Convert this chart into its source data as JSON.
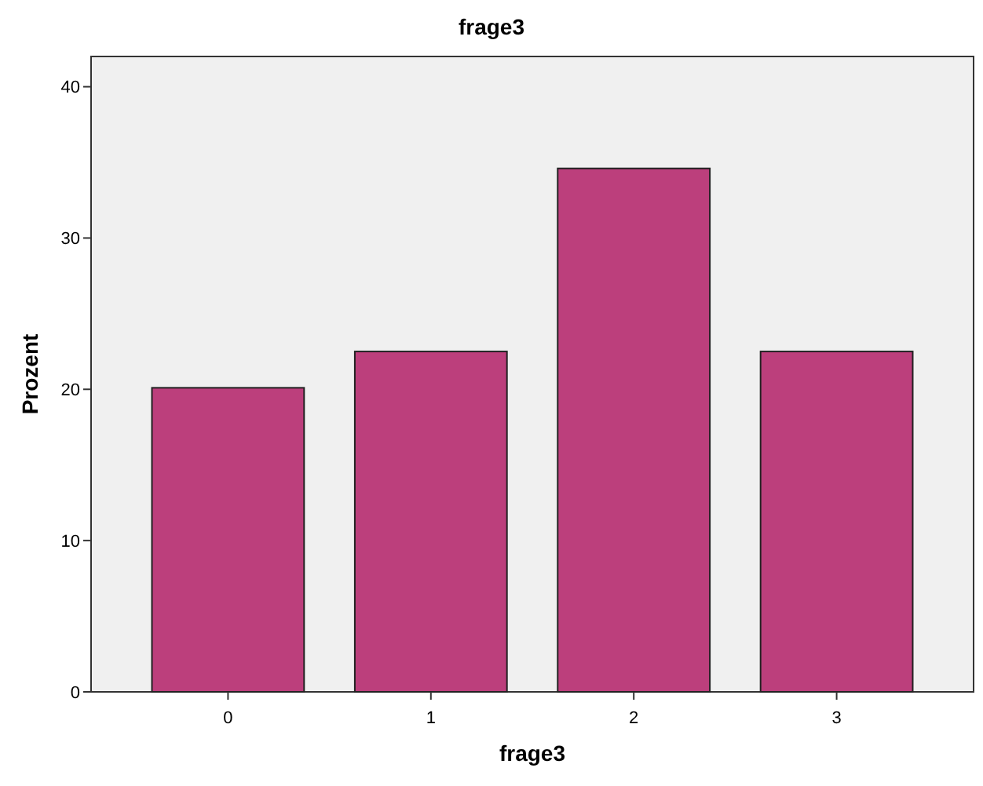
{
  "chart_data": {
    "type": "bar",
    "title": "frage3",
    "xlabel": "frage3",
    "ylabel": "Prozent",
    "categories": [
      "0",
      "1",
      "2",
      "3"
    ],
    "series": [
      {
        "color": "#bc3f7c",
        "values": [
          20.1,
          22.5,
          34.6,
          22.5
        ]
      }
    ],
    "ylim": [
      0,
      42
    ],
    "yticks": [
      0,
      10,
      20,
      30,
      40
    ],
    "grid": false
  }
}
